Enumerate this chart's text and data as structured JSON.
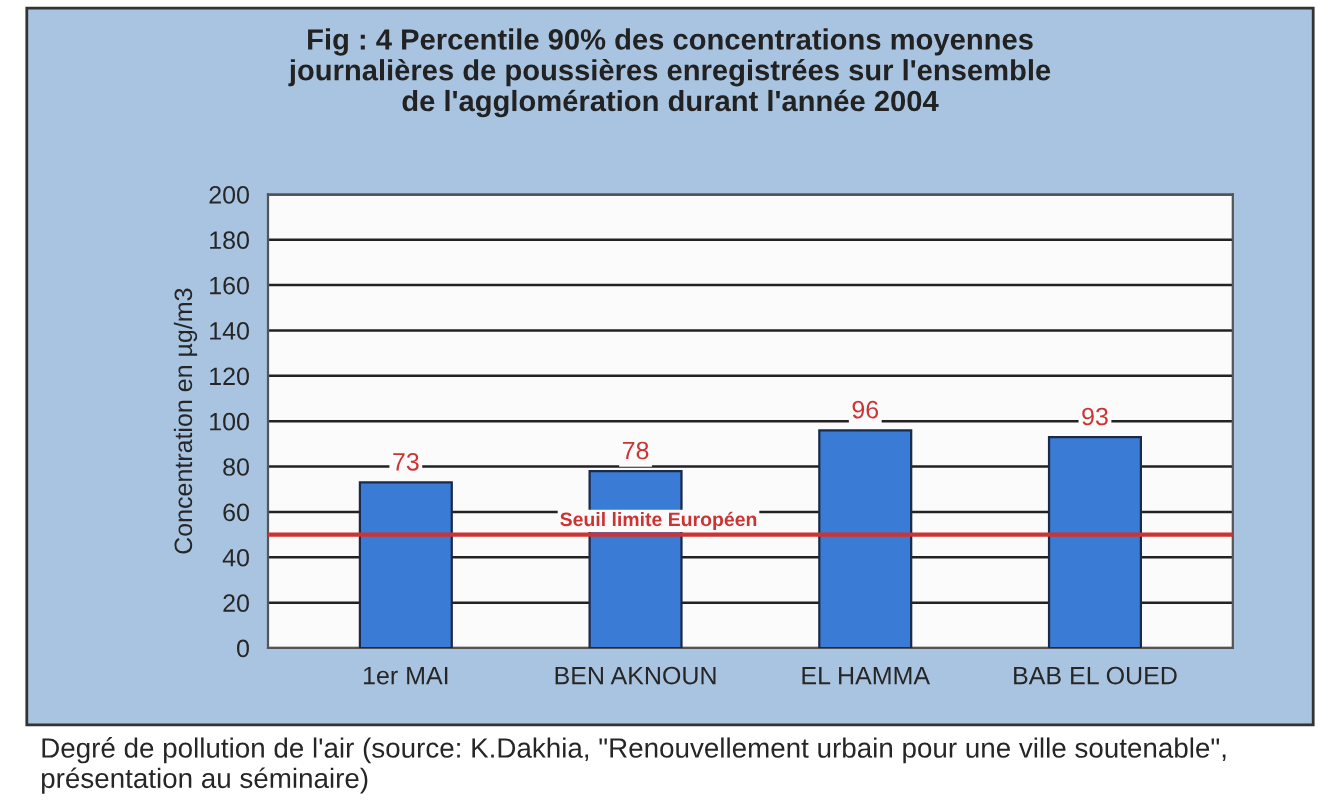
{
  "chart_data": {
    "type": "bar",
    "title": "Fig : 4 Percentile 90% des concentrations moyennes\njournalières de poussières enregistrées sur l'ensemble\nde l'agglomération durant l'année 2004",
    "ylabel": "Concentration en µg/m3",
    "categories": [
      "1er MAI",
      "BEN AKNOUN",
      "EL HAMMA",
      "BAB EL OUED"
    ],
    "values": [
      73,
      78,
      96,
      93
    ],
    "color": "#3a7bd5",
    "data_labels": true,
    "ylim": [
      0,
      200
    ],
    "yticks": [
      0,
      20,
      40,
      60,
      80,
      100,
      120,
      140,
      160,
      180,
      200
    ],
    "grid": "y",
    "ref_lines": [
      {
        "axis": "y",
        "value": 50,
        "label": "Seuil limite Européen",
        "color": "#cc3333"
      }
    ],
    "annotations": [
      "Degré de pollution de l'air (source: K.Dakhia, \"Renouvellement urbain pour une ville soutenable\", présentation au séminaire)"
    ]
  }
}
